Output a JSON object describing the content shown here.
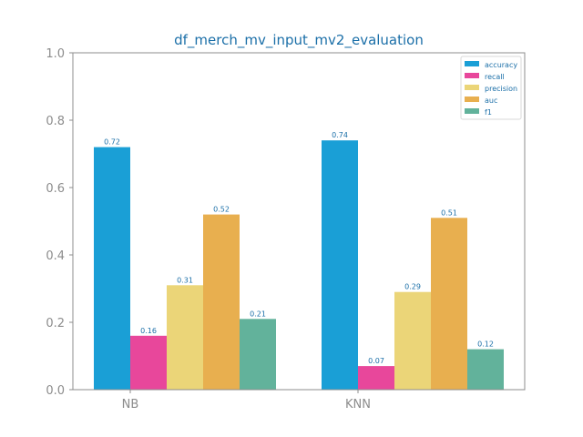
{
  "chart_data": {
    "type": "bar",
    "title": "df_merch_mv_input_mv2_evaluation",
    "xlabel": "",
    "ylabel": "",
    "categories": [
      "NB",
      "KNN"
    ],
    "series": [
      {
        "name": "accuracy",
        "color": "#1a9fd6",
        "values": [
          0.72,
          0.74
        ],
        "labels": [
          "0.72",
          "0.74"
        ]
      },
      {
        "name": "recall",
        "color": "#e8479b",
        "values": [
          0.16,
          0.07
        ],
        "labels": [
          "0.16",
          "0.07"
        ]
      },
      {
        "name": "precision",
        "color": "#ebd578",
        "values": [
          0.31,
          0.29
        ],
        "labels": [
          "0.31",
          "0.29"
        ]
      },
      {
        "name": "auc",
        "color": "#e8af4f",
        "values": [
          0.52,
          0.51
        ],
        "labels": [
          "0.52",
          "0.51"
        ]
      },
      {
        "name": "f1",
        "color": "#62b29b",
        "values": [
          0.21,
          0.12
        ],
        "labels": [
          "0.21",
          "0.12"
        ]
      }
    ],
    "ylim": [
      0,
      1.0
    ],
    "yticks": [
      "0.0",
      "0.2",
      "0.4",
      "0.6",
      "0.8",
      "1.0"
    ],
    "grid": false,
    "legend_position": "top-right",
    "colors": {
      "title": "#1b6fa8",
      "data_label": "#1b6fa8",
      "tick": "#8c8c8c",
      "axis": "#8c8c8c"
    }
  }
}
